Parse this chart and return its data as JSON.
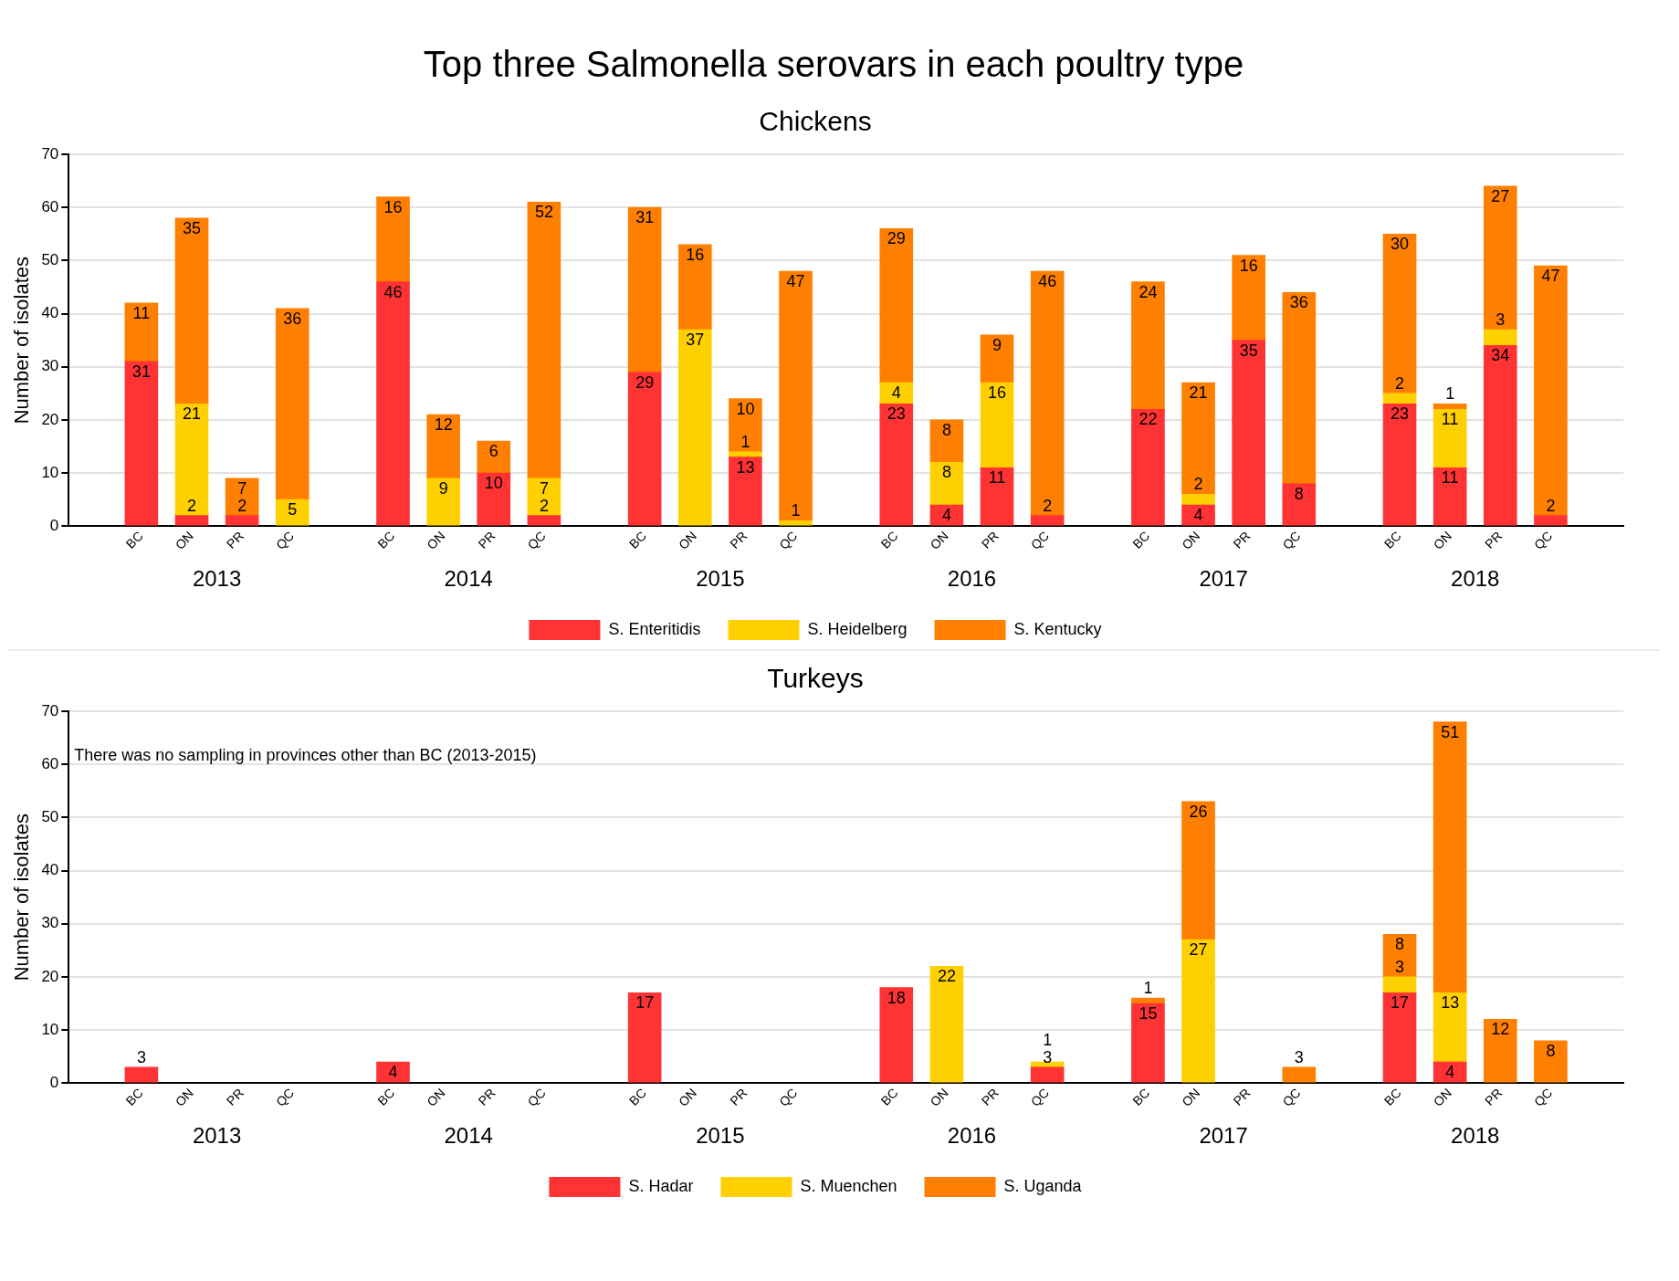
{
  "chart_data": [
    {
      "type": "bar",
      "title": "Top three Salmonella serovars in each poultry type",
      "subtitle": "Chickens",
      "ylabel": "Number of isolates",
      "stacked": true,
      "data_labels": true,
      "grid": "y",
      "legend": "bottom",
      "ylim": [
        0,
        70
      ],
      "yticks": [
        0,
        10,
        20,
        30,
        40,
        50,
        60,
        70
      ],
      "categories": [
        "BC",
        "ON",
        "PR",
        "QC",
        "BC",
        "ON",
        "PR",
        "QC",
        "BC",
        "ON",
        "PR",
        "QC",
        "BC",
        "ON",
        "PR",
        "QC",
        "BC",
        "ON",
        "PR",
        "QC",
        "BC",
        "ON",
        "PR",
        "QC"
      ],
      "annotations": [
        "2013",
        "2014",
        "2015",
        "2016",
        "2017",
        "2018"
      ],
      "series": [
        {
          "name": "S. Enteritidis",
          "color": "#ff3333",
          "values": [
            31,
            2,
            2,
            null,
            46,
            null,
            10,
            2,
            29,
            null,
            13,
            null,
            23,
            4,
            11,
            2,
            22,
            4,
            35,
            8,
            23,
            11,
            34,
            2
          ]
        },
        {
          "name": "S. Heidelberg",
          "color": "#ffd000",
          "values": [
            null,
            21,
            null,
            5,
            null,
            9,
            null,
            7,
            null,
            37,
            1,
            1,
            4,
            8,
            16,
            null,
            null,
            2,
            null,
            null,
            2,
            11,
            3,
            null
          ]
        },
        {
          "name": "S. Kentucky",
          "color": "#ff8000",
          "values": [
            11,
            35,
            7,
            36,
            16,
            12,
            6,
            52,
            31,
            16,
            10,
            47,
            29,
            8,
            9,
            46,
            24,
            21,
            16,
            36,
            30,
            1,
            27,
            47
          ]
        }
      ]
    },
    {
      "type": "bar",
      "title": "Turkeys",
      "ylabel": "Number of isolates",
      "stacked": true,
      "data_labels": true,
      "grid": "y",
      "legend": "bottom",
      "ylim": [
        0,
        70
      ],
      "yticks": [
        0,
        10,
        20,
        30,
        40,
        50,
        60,
        70
      ],
      "categories": [
        "BC",
        "ON",
        "PR",
        "QC",
        "BC",
        "ON",
        "PR",
        "QC",
        "BC",
        "ON",
        "PR",
        "QC",
        "BC",
        "ON",
        "PR",
        "QC",
        "BC",
        "ON",
        "PR",
        "QC",
        "BC",
        "ON",
        "PR",
        "QC"
      ],
      "annotations": [
        "2013",
        "2014",
        "2015",
        "2016",
        "2017",
        "2018",
        "There was no sampling in provinces other than BC (2013-2015)"
      ],
      "series": [
        {
          "name": "S. Hadar",
          "color": "#ff3333",
          "values": [
            3,
            null,
            null,
            null,
            4,
            null,
            null,
            null,
            17,
            null,
            null,
            null,
            18,
            null,
            null,
            3,
            15,
            null,
            null,
            null,
            17,
            4,
            null,
            null
          ]
        },
        {
          "name": "S. Muenchen",
          "color": "#ffd000",
          "values": [
            null,
            null,
            null,
            null,
            null,
            null,
            null,
            null,
            null,
            null,
            null,
            null,
            null,
            22,
            null,
            1,
            null,
            27,
            null,
            null,
            3,
            13,
            null,
            null
          ]
        },
        {
          "name": "S. Uganda",
          "color": "#ff8000",
          "values": [
            null,
            null,
            null,
            null,
            null,
            null,
            null,
            null,
            null,
            null,
            null,
            null,
            null,
            null,
            null,
            null,
            1,
            26,
            null,
            3,
            8,
            51,
            12,
            8
          ]
        }
      ]
    }
  ]
}
